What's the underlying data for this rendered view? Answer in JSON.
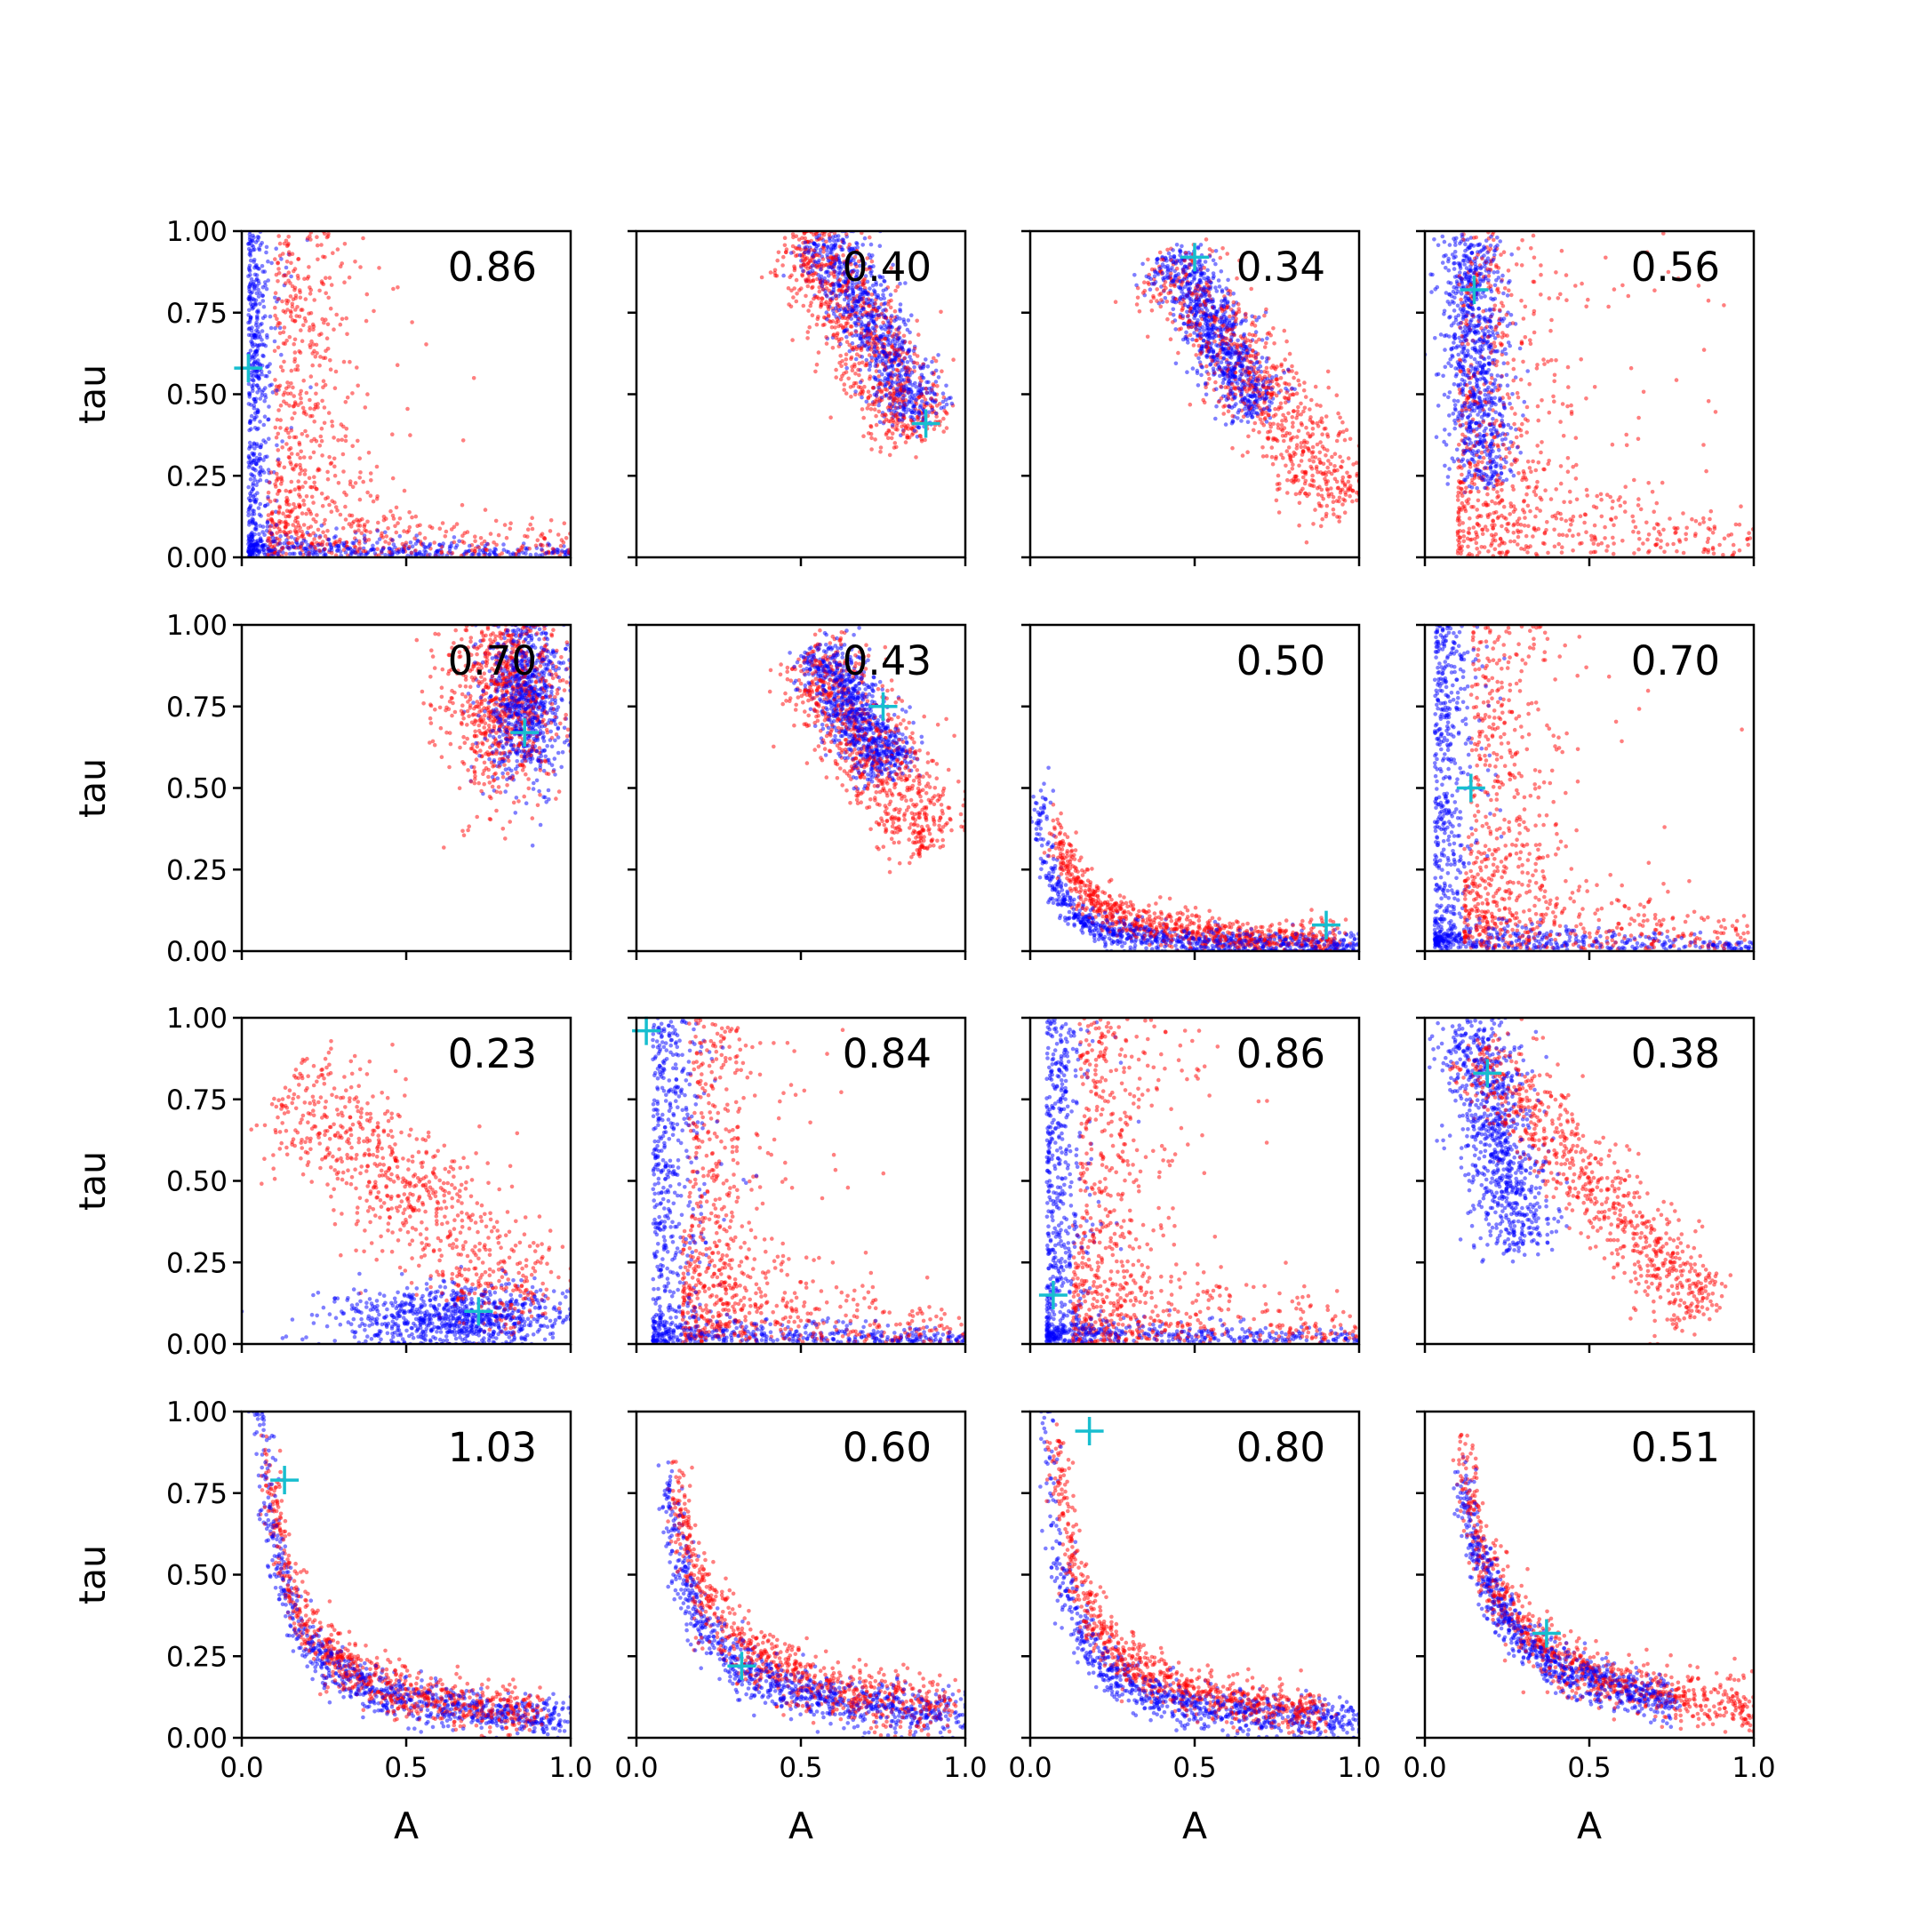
{
  "chart_data": {
    "type": "scatter",
    "layout": "4x4 grid of panels, shared axes",
    "xlabel": "A",
    "ylabel": "tau",
    "xlim": [
      0.0,
      1.0
    ],
    "ylim": [
      0.0,
      1.0
    ],
    "x_ticks": [
      "0.0",
      "0.5",
      "1.0"
    ],
    "y_ticks": [
      "0.00",
      "0.25",
      "0.50",
      "0.75",
      "1.00"
    ],
    "grid": false,
    "series_colors": {
      "sample_a": "#0000ff",
      "sample_b": "#ff0000",
      "marker": "#17becf"
    },
    "panels": [
      {
        "value": "0.86",
        "marker": [
          0.02,
          0.58
        ],
        "blue": {
          "kind": "L",
          "cx": 0.02,
          "w": 0.03,
          "h": 0.04,
          "shift": 0.0
        },
        "red": {
          "kind": "L",
          "cx": 0.08,
          "w": 0.12,
          "h": 0.14,
          "shift": 0.02
        }
      },
      {
        "value": "0.40",
        "marker": [
          0.88,
          0.41
        ],
        "blue": {
          "kind": "band",
          "p0": [
            0.57,
            0.98
          ],
          "p1": [
            0.87,
            0.42
          ],
          "spread": 0.05
        },
        "red": {
          "kind": "band",
          "p0": [
            0.5,
            0.99
          ],
          "p1": [
            0.87,
            0.38
          ],
          "spread": 0.07
        }
      },
      {
        "value": "0.34",
        "marker": [
          0.5,
          0.92
        ],
        "blue": {
          "kind": "band",
          "p0": [
            0.43,
            0.93
          ],
          "p1": [
            0.7,
            0.45
          ],
          "spread": 0.05
        },
        "red": {
          "kind": "band",
          "p0": [
            0.4,
            0.9
          ],
          "p1": [
            0.98,
            0.16
          ],
          "spread": 0.07
        }
      },
      {
        "value": "0.56",
        "marker": [
          0.15,
          0.82
        ],
        "blue": {
          "kind": "band",
          "p0": [
            0.13,
            0.98
          ],
          "p1": [
            0.18,
            0.22
          ],
          "spread": 0.05
        },
        "red": {
          "kind": "L",
          "cx": 0.1,
          "w": 0.16,
          "h": 0.2,
          "shift": 0.0
        }
      },
      {
        "value": "0.70",
        "marker": [
          0.86,
          0.67
        ],
        "blue": {
          "kind": "cloud",
          "cx": 0.86,
          "cy": 0.78,
          "sx": 0.06,
          "sy": 0.13
        },
        "red": {
          "kind": "cloud",
          "cx": 0.8,
          "cy": 0.78,
          "sx": 0.09,
          "sy": 0.15
        }
      },
      {
        "value": "0.43",
        "marker": [
          0.75,
          0.75
        ],
        "blue": {
          "kind": "band",
          "p0": [
            0.55,
            0.92
          ],
          "p1": [
            0.78,
            0.55
          ],
          "spread": 0.05
        },
        "red": {
          "kind": "band",
          "p0": [
            0.52,
            0.92
          ],
          "p1": [
            0.9,
            0.32
          ],
          "spread": 0.07
        }
      },
      {
        "value": "0.50",
        "marker": [
          0.9,
          0.08
        ],
        "blue": {
          "kind": "curve",
          "a": 0.015,
          "sy": 0.05,
          "xr": [
            0.03,
            1.0
          ]
        },
        "red": {
          "kind": "curve",
          "a": 0.03,
          "sy": 0.07,
          "xr": [
            0.08,
            0.95
          ]
        }
      },
      {
        "value": "0.70",
        "marker": [
          0.14,
          0.5
        ],
        "blue": {
          "kind": "L",
          "cx": 0.03,
          "w": 0.05,
          "h": 0.05,
          "shift": 0.0
        },
        "red": {
          "kind": "L",
          "cx": 0.12,
          "w": 0.12,
          "h": 0.18,
          "shift": 0.02
        }
      },
      {
        "value": "0.23",
        "marker": [
          0.72,
          0.1
        ],
        "blue": {
          "kind": "cloud",
          "cx": 0.65,
          "cy": 0.08,
          "sx": 0.18,
          "sy": 0.05
        },
        "red": {
          "kind": "band",
          "p0": [
            0.15,
            0.8
          ],
          "p1": [
            0.9,
            0.1
          ],
          "spread": 0.1
        }
      },
      {
        "value": "0.84",
        "marker": [
          0.03,
          0.96
        ],
        "blue": {
          "kind": "L",
          "cx": 0.05,
          "w": 0.06,
          "h": 0.05,
          "shift": 0.0
        },
        "red": {
          "kind": "L",
          "cx": 0.14,
          "w": 0.12,
          "h": 0.18,
          "shift": 0.02
        }
      },
      {
        "value": "0.86",
        "marker": [
          0.07,
          0.15
        ],
        "blue": {
          "kind": "L",
          "cx": 0.05,
          "w": 0.05,
          "h": 0.05,
          "shift": 0.0
        },
        "red": {
          "kind": "L",
          "cx": 0.13,
          "w": 0.12,
          "h": 0.18,
          "shift": 0.02
        }
      },
      {
        "value": "0.38",
        "marker": [
          0.19,
          0.83
        ],
        "blue": {
          "kind": "band",
          "p0": [
            0.14,
            0.98
          ],
          "p1": [
            0.3,
            0.3
          ],
          "spread": 0.06
        },
        "red": {
          "kind": "band",
          "p0": [
            0.15,
            0.9
          ],
          "p1": [
            0.85,
            0.1
          ],
          "spread": 0.06
        }
      },
      {
        "value": "1.03",
        "marker": [
          0.13,
          0.79
        ],
        "blue": {
          "kind": "curve",
          "a": 0.06,
          "sy": 0.07,
          "xr": [
            0.05,
            1.0
          ]
        },
        "red": {
          "kind": "curve",
          "a": 0.07,
          "sy": 0.08,
          "xr": [
            0.08,
            0.9
          ]
        }
      },
      {
        "value": "0.60",
        "marker": [
          0.32,
          0.22
        ],
        "blue": {
          "kind": "curve",
          "a": 0.07,
          "sy": 0.08,
          "xr": [
            0.09,
            1.0
          ]
        },
        "red": {
          "kind": "curve",
          "a": 0.09,
          "sy": 0.09,
          "xr": [
            0.12,
            0.95
          ]
        }
      },
      {
        "value": "0.80",
        "marker": [
          0.18,
          0.94
        ],
        "blue": {
          "kind": "curve",
          "a": 0.05,
          "sy": 0.07,
          "xr": [
            0.04,
            1.0
          ]
        },
        "red": {
          "kind": "curve",
          "a": 0.07,
          "sy": 0.08,
          "xr": [
            0.08,
            0.9
          ]
        }
      },
      {
        "value": "0.51",
        "marker": [
          0.37,
          0.32
        ],
        "blue": {
          "kind": "curve",
          "a": 0.09,
          "sy": 0.07,
          "xr": [
            0.12,
            0.75
          ]
        },
        "red": {
          "kind": "curve",
          "a": 0.1,
          "sy": 0.09,
          "xr": [
            0.12,
            1.0
          ]
        }
      }
    ]
  }
}
